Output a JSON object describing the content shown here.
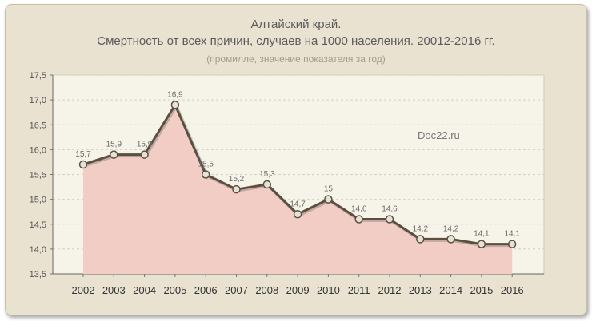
{
  "chart_data": {
    "type": "area",
    "title_line1": "Алтайский край.",
    "title_line2": "Смертность от всех причин, случаев на 1000 населения.  20012-2016 гг.",
    "subtitle": "(промилле, значение показателя за год)",
    "watermark": "Doc22.ru",
    "categories": [
      "2002",
      "2003",
      "2004",
      "2005",
      "2006",
      "2007",
      "2008",
      "2009",
      "2010",
      "2011",
      "2012",
      "2013",
      "2014",
      "2015",
      "2016"
    ],
    "values": [
      15.7,
      15.9,
      15.9,
      16.9,
      15.5,
      15.2,
      15.3,
      14.7,
      15.0,
      14.6,
      14.6,
      14.2,
      14.2,
      14.1,
      14.1
    ],
    "data_labels": [
      "15,7",
      "15,9",
      "15,9",
      "16,9",
      "15,5",
      "15,2",
      "15,3",
      "14,7",
      "15",
      "14,6",
      "14,6",
      "14,2",
      "14,2",
      "14,1",
      "14,1"
    ],
    "y_ticks": [
      "13,5",
      "14,0",
      "14,5",
      "15,0",
      "15,5",
      "16,0",
      "16,5",
      "17,0",
      "17,5"
    ],
    "y_tick_values": [
      13.5,
      14.0,
      14.5,
      15.0,
      15.5,
      16.0,
      16.5,
      17.0,
      17.5
    ],
    "ylim": [
      13.5,
      17.5
    ],
    "grid": "horizontal dashed",
    "colors": {
      "plot_background": "#f6f3e9",
      "area_fill": "#f1cdc6",
      "line": "#5a5040",
      "marker_fill": "#e6e2d8",
      "gridline": "#d8cfc1",
      "text": "#555555"
    }
  }
}
